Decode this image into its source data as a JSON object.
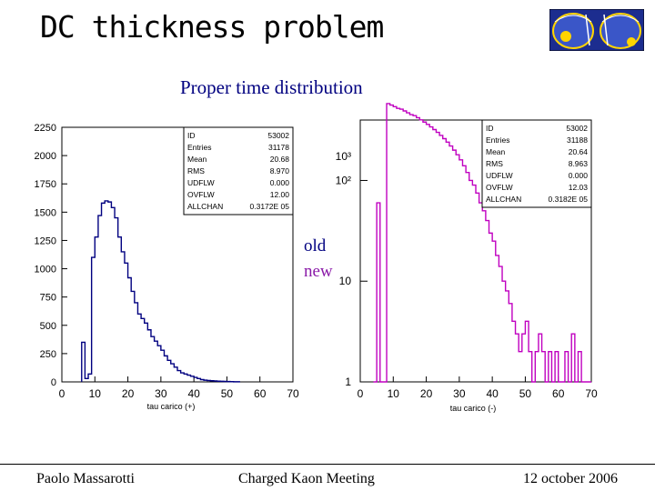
{
  "slide": {
    "title": "DC thickness problem",
    "subtitle": "Proper time distribution",
    "legend_old": "old",
    "legend_new": "new"
  },
  "logo": {
    "name": "kloe-logo-icon"
  },
  "footer": {
    "author": "Paolo Massarotti",
    "meeting": "Charged Kaon Meeting",
    "date": "12 october 2006"
  },
  "colors": {
    "old": "#000080",
    "new": "#c000c0"
  },
  "chart_data": [
    {
      "type": "histogram",
      "scale": "linear",
      "xlabel": "tau carico (+)",
      "xlim": [
        0,
        70
      ],
      "ylim": [
        0,
        2250
      ],
      "x_ticks": [
        0,
        10,
        20,
        30,
        40,
        50,
        60,
        70
      ],
      "y_ticks": [
        0,
        250,
        500,
        750,
        1000,
        1250,
        1500,
        1750,
        2000,
        2250
      ],
      "stats": [
        [
          "ID",
          "53002"
        ],
        [
          "Entries",
          "31178"
        ],
        [
          "Mean",
          "20.68"
        ],
        [
          "RMS",
          "8.970"
        ],
        [
          "UDFLW",
          "0.000"
        ],
        [
          "OVFLW",
          "12.00"
        ],
        [
          "ALLCHAN",
          "0.3172E 05"
        ]
      ],
      "series": {
        "name": "old",
        "bin_width": 1,
        "x_start": 6,
        "values": [
          350,
          30,
          70,
          1100,
          1280,
          1470,
          1580,
          1600,
          1590,
          1540,
          1450,
          1280,
          1150,
          1050,
          920,
          800,
          700,
          600,
          560,
          520,
          460,
          400,
          360,
          320,
          280,
          230,
          190,
          160,
          130,
          100,
          80,
          70,
          60,
          50,
          40,
          30,
          20,
          15,
          12,
          10,
          8,
          6,
          5,
          4,
          3,
          2,
          1,
          1
        ]
      }
    },
    {
      "type": "histogram",
      "scale": "log",
      "xlabel": "tau carico (-)",
      "xlim": [
        0,
        70
      ],
      "ylim_log10": [
        0,
        2.6
      ],
      "x_ticks": [
        0,
        10,
        20,
        30,
        40,
        50,
        60,
        70
      ],
      "y_ticks": [
        "1",
        "10",
        "10²",
        "10³"
      ],
      "stats": [
        [
          "ID",
          "53002"
        ],
        [
          "Entries",
          "31188"
        ],
        [
          "Mean",
          "20.64"
        ],
        [
          "RMS",
          "8.963"
        ],
        [
          "UDFLW",
          "0.000"
        ],
        [
          "OVFLW",
          "12.03"
        ],
        [
          "ALLCHAN",
          "0.3182E 05"
        ]
      ],
      "series": {
        "name": "new",
        "bin_width": 1,
        "x_start": 4,
        "values": [
          1,
          60,
          1,
          1,
          580,
          560,
          540,
          520,
          510,
          490,
          470,
          450,
          440,
          420,
          400,
          380,
          360,
          340,
          320,
          300,
          280,
          260,
          240,
          220,
          200,
          180,
          160,
          140,
          120,
          100,
          90,
          75,
          60,
          50,
          40,
          30,
          25,
          18,
          14,
          10,
          8,
          6,
          4,
          3,
          2,
          3,
          4,
          2,
          1,
          2,
          3,
          2,
          1,
          2,
          1,
          2,
          1,
          1,
          2,
          1,
          3,
          1,
          2,
          1,
          1,
          1
        ]
      }
    }
  ]
}
